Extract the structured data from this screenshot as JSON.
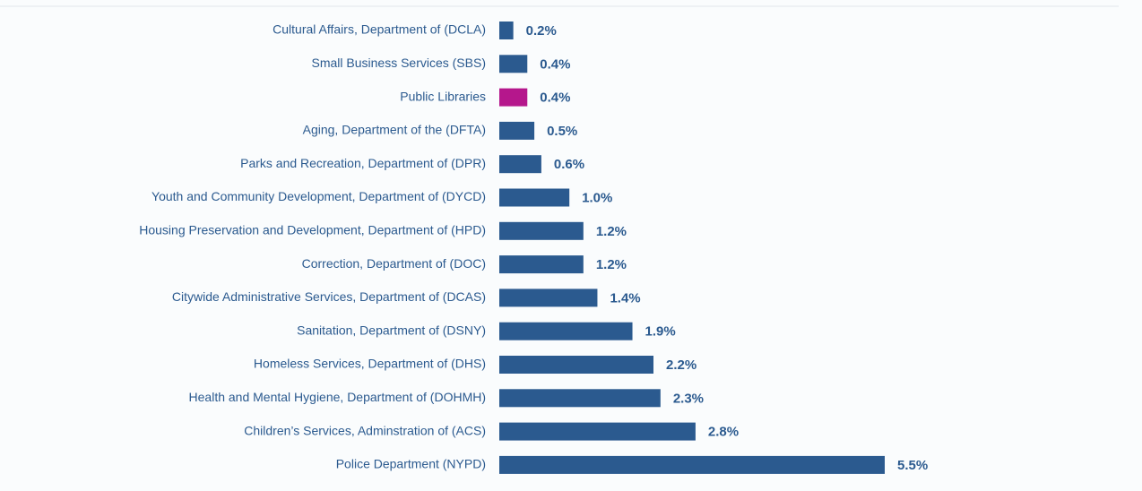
{
  "chart_data": {
    "type": "bar",
    "orientation": "horizontal",
    "categories": [
      "Cultural Affairs, Department of (DCLA)",
      "Small Business Services (SBS)",
      "Public Libraries",
      "Aging, Department of the (DFTA)",
      "Parks and Recreation, Department of (DPR)",
      "Youth and Community Development, Department of (DYCD)",
      "Housing Preservation and Development, Department of (HPD)",
      "Correction, Department of (DOC)",
      "Citywide Administrative Services, Department of (DCAS)",
      "Sanitation, Department of (DSNY)",
      "Homeless Services, Department of (DHS)",
      "Health and Mental Hygiene, Department of (DOHMH)",
      "Children’s Services, Adminstration of (ACS)",
      "Police Department (NYPD)"
    ],
    "values": [
      0.2,
      0.4,
      0.4,
      0.5,
      0.6,
      1.0,
      1.2,
      1.2,
      1.4,
      1.9,
      2.2,
      2.3,
      2.8,
      5.5
    ],
    "value_labels": [
      "0.2%",
      "0.4%",
      "0.4%",
      "0.5%",
      "0.6%",
      "1.0%",
      "1.2%",
      "1.2%",
      "1.4%",
      "1.9%",
      "2.2%",
      "2.3%",
      "2.8%",
      "5.5%"
    ],
    "colors": [
      "#2b5a8f",
      "#2b5a8f",
      "#b5178c",
      "#2b5a8f",
      "#2b5a8f",
      "#2b5a8f",
      "#2b5a8f",
      "#2b5a8f",
      "#2b5a8f",
      "#2b5a8f",
      "#2b5a8f",
      "#2b5a8f",
      "#2b5a8f",
      "#2b5a8f"
    ]
  }
}
